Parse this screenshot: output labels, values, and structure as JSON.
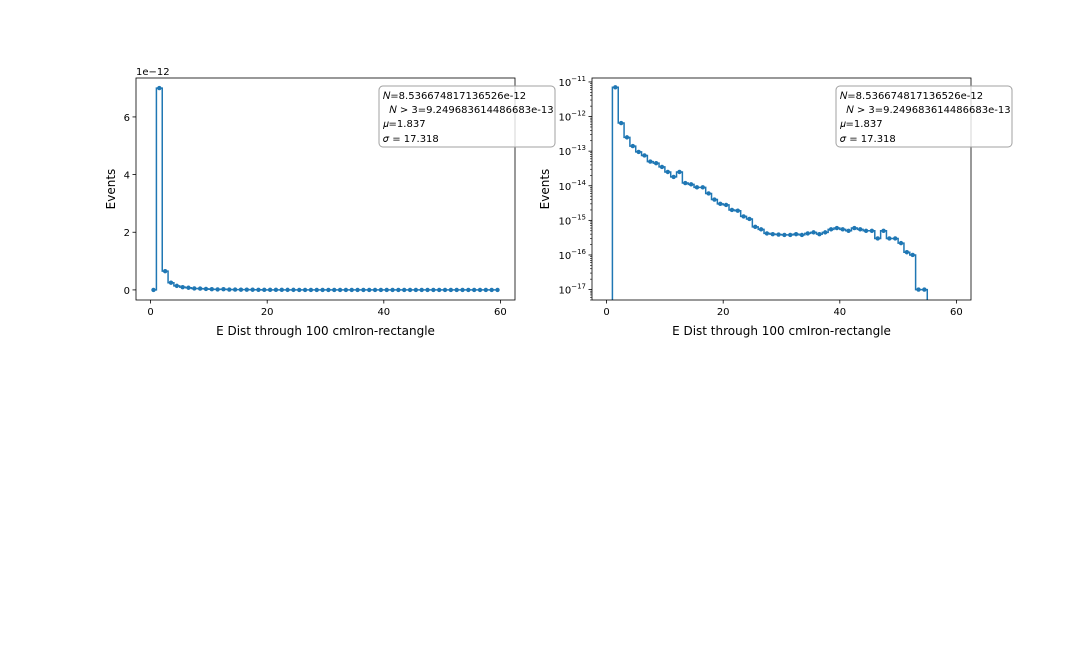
{
  "chart_data": [
    {
      "type": "line",
      "drawstyle": "steps-mid",
      "yscale": "linear",
      "xlabel": "E Dist through 100 cmIron-rectangle",
      "ylabel": "Events",
      "offset_text": "1e−12",
      "xlim": [
        -2.5,
        62.5
      ],
      "ylim": [
        -3.5e-13,
        7.35e-12
      ],
      "xticks": [
        0,
        20,
        40,
        60
      ],
      "yticks": [
        0,
        2e-12,
        4e-12,
        6e-12
      ],
      "ytick_labels": [
        "0",
        "2",
        "4",
        "6"
      ],
      "stats_box": [
        "𝑁=8.536674817136526e-12",
        "  𝑁 > 3=9.249683614486683e-13",
        "𝜇=1.837",
        "𝜎 = 17.318"
      ],
      "series_color": "#1f77b4",
      "x": [
        0.5,
        1.5,
        2.5,
        3.5,
        4.5,
        5.5,
        6.5,
        7.5,
        8.5,
        9.5,
        10.5,
        11.5,
        12.5,
        13.5,
        14.5,
        15.5,
        16.5,
        17.5,
        18.5,
        19.5,
        20.5,
        21.5,
        22.5,
        23.5,
        24.5,
        25.5,
        26.5,
        27.5,
        28.5,
        29.5,
        30.5,
        31.5,
        32.5,
        33.5,
        34.5,
        35.5,
        36.5,
        37.5,
        38.5,
        39.5,
        40.5,
        41.5,
        42.5,
        43.5,
        44.5,
        45.5,
        46.5,
        47.5,
        48.5,
        49.5,
        50.5,
        51.5,
        52.5,
        53.5,
        54.5,
        55.5,
        56.5,
        57.5,
        58.5,
        59.5
      ],
      "y": [
        0,
        7e-12,
        6.5e-13,
        2.5e-13,
        1.4e-13,
        9.5e-14,
        7.5e-14,
        5e-14,
        4.5e-14,
        3.5e-14,
        2.5e-14,
        1.8e-14,
        2.5e-14,
        1.2e-14,
        1.1e-14,
        9e-15,
        9e-15,
        6e-15,
        4e-15,
        3e-15,
        2.8e-15,
        2e-15,
        1.9e-15,
        1.3e-15,
        1.1e-15,
        6.5e-16,
        5.5e-16,
        4.2e-16,
        4e-16,
        3.9e-16,
        3.8e-16,
        3.8e-16,
        4e-16,
        3.8e-16,
        4.2e-16,
        4.5e-16,
        4e-16,
        4.5e-16,
        5.5e-16,
        6e-16,
        5.5e-16,
        5e-16,
        6e-16,
        5.5e-16,
        5e-16,
        5e-16,
        3e-16,
        5e-16,
        3e-16,
        3e-16,
        2.2e-16,
        1.2e-16,
        1e-16,
        1e-17,
        1e-17,
        0,
        0,
        0,
        0,
        0
      ]
    },
    {
      "type": "line",
      "drawstyle": "steps-mid",
      "yscale": "log",
      "xlabel": "E Dist through 100 cmIron-rectangle",
      "ylabel": "Events",
      "xlim": [
        -2.5,
        62.5
      ],
      "ylim": [
        5e-18,
        1.3e-11
      ],
      "xticks": [
        0,
        20,
        40,
        60
      ],
      "yticks_log": [
        -17,
        -16,
        -15,
        -14,
        -13,
        -12,
        -11
      ],
      "stats_box": [
        "𝑁=8.536674817136526e-12",
        "  𝑁 > 3=9.249683614486683e-13",
        "𝜇=1.837",
        "𝜎 = 17.318"
      ],
      "series_color": "#1f77b4",
      "x": [
        0.5,
        1.5,
        2.5,
        3.5,
        4.5,
        5.5,
        6.5,
        7.5,
        8.5,
        9.5,
        10.5,
        11.5,
        12.5,
        13.5,
        14.5,
        15.5,
        16.5,
        17.5,
        18.5,
        19.5,
        20.5,
        21.5,
        22.5,
        23.5,
        24.5,
        25.5,
        26.5,
        27.5,
        28.5,
        29.5,
        30.5,
        31.5,
        32.5,
        33.5,
        34.5,
        35.5,
        36.5,
        37.5,
        38.5,
        39.5,
        40.5,
        41.5,
        42.5,
        43.5,
        44.5,
        45.5,
        46.5,
        47.5,
        48.5,
        49.5,
        50.5,
        51.5,
        52.5,
        53.5,
        54.5,
        55.5,
        56.5,
        57.5,
        58.5,
        59.5
      ],
      "y": [
        0,
        7e-12,
        6.5e-13,
        2.5e-13,
        1.4e-13,
        9.5e-14,
        7.5e-14,
        5e-14,
        4.5e-14,
        3.5e-14,
        2.5e-14,
        1.8e-14,
        2.5e-14,
        1.2e-14,
        1.1e-14,
        9e-15,
        9e-15,
        6e-15,
        4e-15,
        3e-15,
        2.8e-15,
        2e-15,
        1.9e-15,
        1.3e-15,
        1.1e-15,
        6.5e-16,
        5.5e-16,
        4.2e-16,
        4e-16,
        3.9e-16,
        3.8e-16,
        3.8e-16,
        4e-16,
        3.8e-16,
        4.2e-16,
        4.5e-16,
        4e-16,
        4.5e-16,
        5.5e-16,
        6e-16,
        5.5e-16,
        5e-16,
        6e-16,
        5.5e-16,
        5e-16,
        5e-16,
        3e-16,
        5e-16,
        3e-16,
        3e-16,
        2.2e-16,
        1.2e-16,
        1e-16,
        1e-17,
        1e-17,
        0,
        0,
        0,
        0,
        0
      ]
    }
  ]
}
